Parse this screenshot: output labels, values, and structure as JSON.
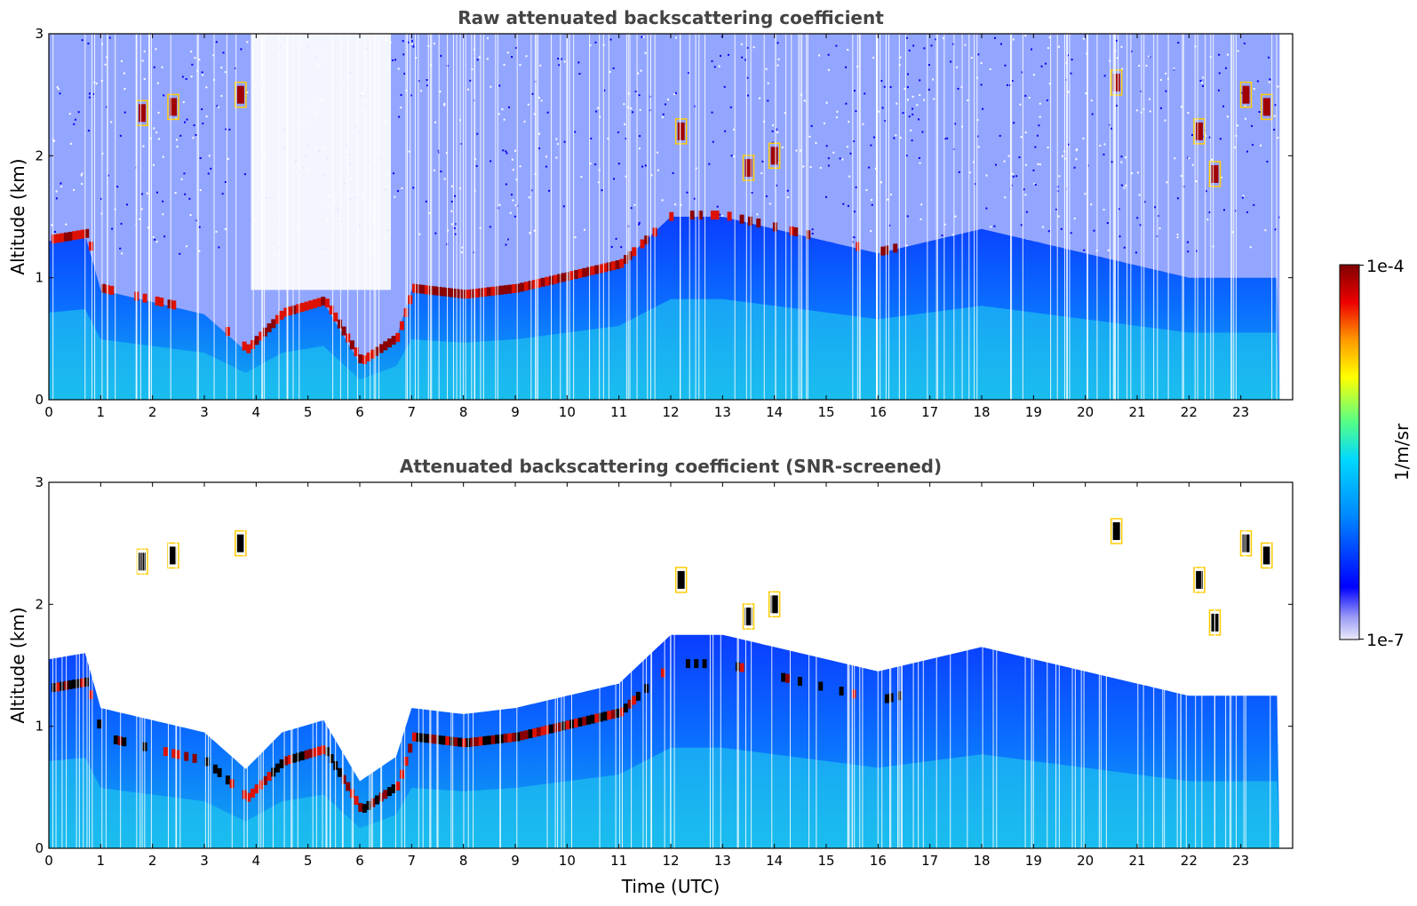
{
  "chart_data": [
    {
      "type": "heatmap",
      "title": "Raw attenuated backscattering coefficient",
      "xlabel": "",
      "ylabel": "Altitude (km)",
      "xlim": [
        0,
        24
      ],
      "ylim": [
        0,
        3
      ],
      "x_ticks": [
        "0",
        "1",
        "2",
        "3",
        "4",
        "5",
        "6",
        "7",
        "8",
        "9",
        "10",
        "11",
        "12",
        "13",
        "14",
        "15",
        "16",
        "17",
        "18",
        "19",
        "20",
        "21",
        "22",
        "23"
      ],
      "y_ticks": [
        "0",
        "1",
        "2",
        "3"
      ],
      "color_scale": "log",
      "features": {
        "boundary_layer_top_km": [
          {
            "t": 0.0,
            "h": 1.3
          },
          {
            "t": 0.7,
            "h": 1.35
          },
          {
            "t": 1.0,
            "h": 0.9
          },
          {
            "t": 2.0,
            "h": 0.8
          },
          {
            "t": 3.0,
            "h": 0.7
          },
          {
            "t": 3.8,
            "h": 0.4
          },
          {
            "t": 4.5,
            "h": 0.7
          },
          {
            "t": 5.3,
            "h": 0.8
          },
          {
            "t": 6.0,
            "h": 0.3
          },
          {
            "t": 6.7,
            "h": 0.5
          },
          {
            "t": 7.0,
            "h": 0.9
          },
          {
            "t": 8.0,
            "h": 0.85
          },
          {
            "t": 9.0,
            "h": 0.9
          },
          {
            "t": 10.0,
            "h": 1.0
          },
          {
            "t": 11.0,
            "h": 1.1
          },
          {
            "t": 12.0,
            "h": 1.5
          },
          {
            "t": 13.0,
            "h": 1.5
          },
          {
            "t": 14.0,
            "h": 1.4
          },
          {
            "t": 15.0,
            "h": 1.3
          },
          {
            "t": 16.0,
            "h": 1.2
          },
          {
            "t": 17.0,
            "h": 1.3
          },
          {
            "t": 18.0,
            "h": 1.4
          },
          {
            "t": 19.0,
            "h": 1.3
          },
          {
            "t": 20.0,
            "h": 1.2
          },
          {
            "t": 21.0,
            "h": 1.1
          },
          {
            "t": 22.0,
            "h": 1.0
          },
          {
            "t": 23.0,
            "h": 1.0
          },
          {
            "t": 23.7,
            "h": 1.0
          }
        ],
        "elevated_cloud_layers": [
          {
            "t": 1.8,
            "h": 2.35
          },
          {
            "t": 2.4,
            "h": 2.4
          },
          {
            "t": 3.7,
            "h": 2.5
          },
          {
            "t": 12.2,
            "h": 2.2
          },
          {
            "t": 13.5,
            "h": 1.9
          },
          {
            "t": 14.0,
            "h": 2.0
          },
          {
            "t": 20.6,
            "h": 2.6
          },
          {
            "t": 22.2,
            "h": 2.2
          },
          {
            "t": 22.5,
            "h": 1.85
          },
          {
            "t": 23.1,
            "h": 2.5
          },
          {
            "t": 23.5,
            "h": 2.4
          }
        ]
      }
    },
    {
      "type": "heatmap",
      "title": "Attenuated backscattering coefficient (SNR-screened)",
      "xlabel": "Time (UTC)",
      "ylabel": "Altitude (km)",
      "xlim": [
        0,
        24
      ],
      "ylim": [
        0,
        3
      ],
      "x_ticks": [
        "0",
        "1",
        "2",
        "3",
        "4",
        "5",
        "6",
        "7",
        "8",
        "9",
        "10",
        "11",
        "12",
        "13",
        "14",
        "15",
        "16",
        "17",
        "18",
        "19",
        "20",
        "21",
        "22",
        "23"
      ],
      "y_ticks": [
        "0",
        "1",
        "2",
        "3"
      ],
      "color_scale": "log"
    }
  ],
  "colorbar": {
    "label": "1/m/sr",
    "max_label": "1e-4",
    "min_label": "1e-7",
    "colors": [
      "#e8e8f8",
      "#0000ff",
      "#0099ff",
      "#00ffff",
      "#66ff66",
      "#ffff00",
      "#ff8800",
      "#ff0000",
      "#800000"
    ]
  }
}
